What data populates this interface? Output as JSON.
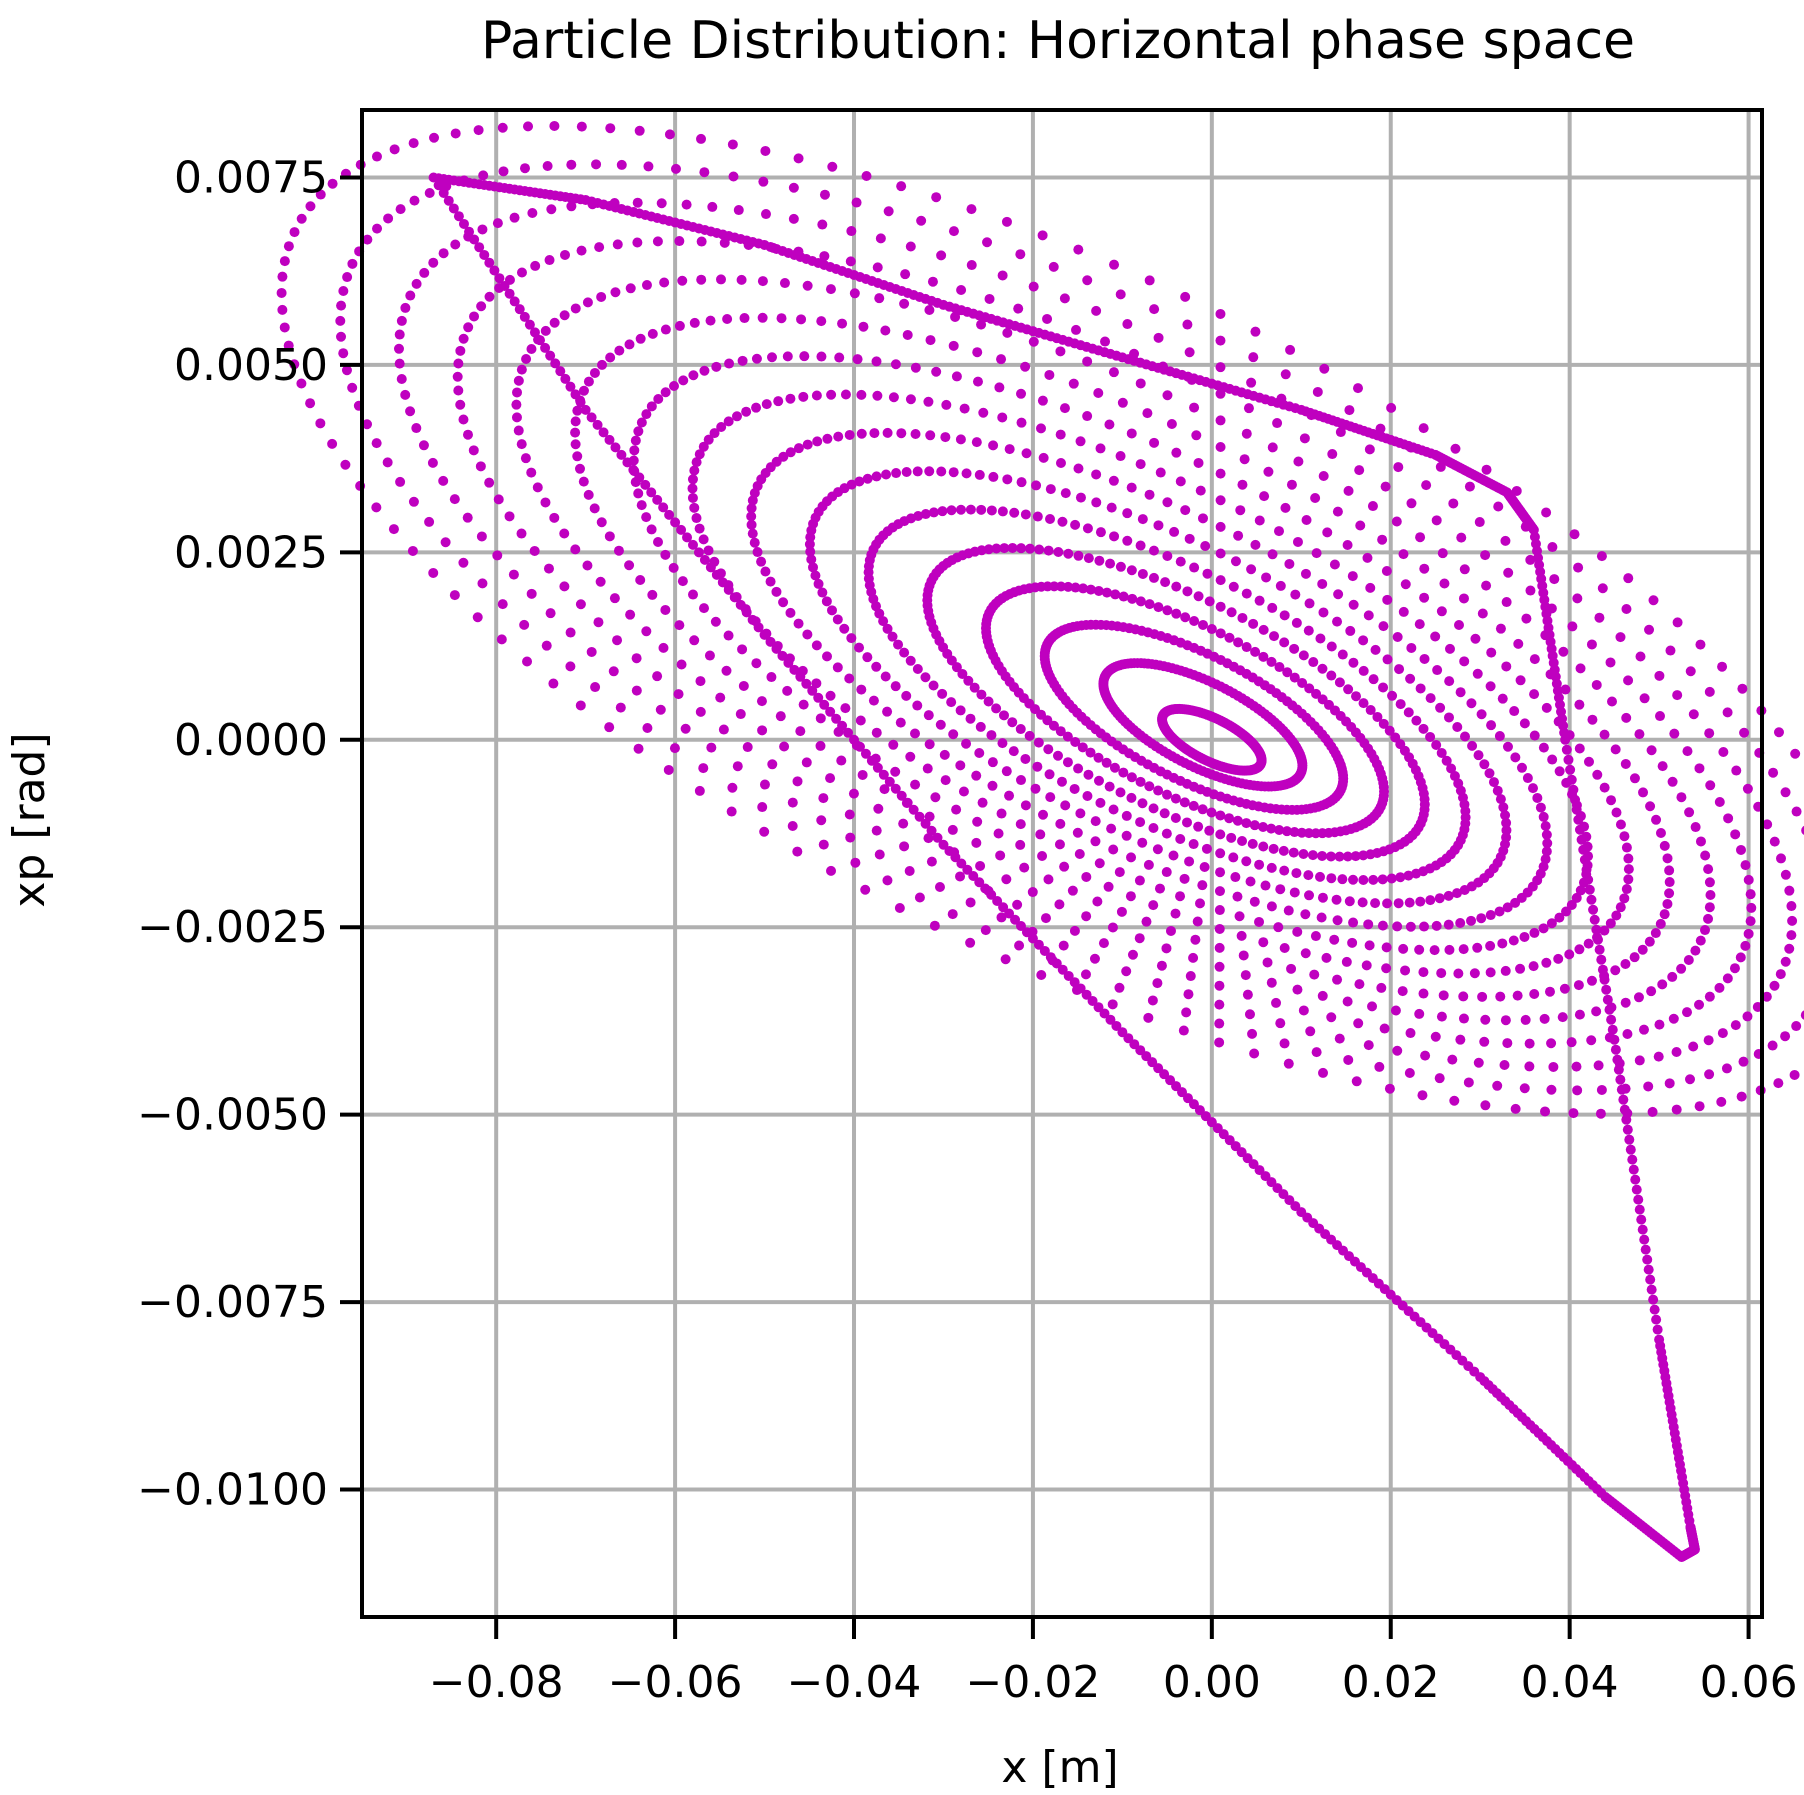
{
  "chart_data": {
    "type": "scatter",
    "title": "Particle Distribution: Horizontal phase space",
    "xlabel": "x [m]",
    "ylabel": "xp [rad]",
    "xlim": [
      -0.095,
      0.0615
    ],
    "ylim": [
      -0.0117,
      0.0084
    ],
    "xticks": [
      -0.08,
      -0.06,
      -0.04,
      -0.02,
      0.0,
      0.02,
      0.04,
      0.06
    ],
    "xtick_labels": [
      "−0.08",
      "−0.06",
      "−0.04",
      "−0.02",
      "0.00",
      "0.02",
      "0.04",
      "0.06"
    ],
    "yticks": [
      0.0075,
      0.005,
      0.0025,
      0.0,
      -0.0025,
      -0.005,
      -0.0075,
      -0.01
    ],
    "ytick_labels": [
      "0.0075",
      "0.0050",
      "0.0025",
      "0.0000",
      "−0.0025",
      "−0.0050",
      "−0.0075",
      "−0.0100"
    ],
    "grid": true,
    "legend": "none",
    "marker_color": "#bf00bf",
    "grid_color": "#b0b0b0",
    "series": [
      {
        "description_only": false,
        "x": [
          -0.087,
          -0.07,
          -0.05,
          -0.03,
          -0.01,
          0.01,
          0.025,
          0.033,
          0.036,
          0.0395,
          0.045,
          0.05,
          0.0535,
          0.054,
          0.0525,
          0.044,
          0.03,
          0.01,
          -0.01,
          -0.03,
          -0.05,
          -0.07,
          -0.087
        ],
        "y": [
          0.0075,
          0.0072,
          0.0066,
          0.0058,
          0.0051,
          0.0044,
          0.0038,
          0.0033,
          0.0028,
          0.0,
          -0.004,
          -0.008,
          -0.0105,
          -0.0108,
          -0.0109,
          -0.0101,
          -0.0085,
          -0.0063,
          -0.0039,
          -0.0014,
          0.0014,
          0.0044,
          0.0075
        ]
      }
    ],
    "rings": [
      {
        "cx": 0.0,
        "cy": 0.0,
        "r": 0.06
      },
      {
        "cx": -0.001,
        "cy": 0.0002,
        "r": 0.12
      },
      {
        "cx": -0.002,
        "cy": 0.0003,
        "r": 0.18
      },
      {
        "cx": -0.003,
        "cy": 0.0004,
        "r": 0.24
      },
      {
        "cx": -0.004,
        "cy": 0.0005,
        "r": 0.3
      },
      {
        "cx": -0.005,
        "cy": 0.0006,
        "r": 0.36
      },
      {
        "cx": -0.006,
        "cy": 0.0007,
        "r": 0.42
      },
      {
        "cx": -0.007,
        "cy": 0.0008,
        "r": 0.48
      },
      {
        "cx": -0.008,
        "cy": 0.0009,
        "r": 0.54
      },
      {
        "cx": -0.009,
        "cy": 0.001,
        "r": 0.6
      },
      {
        "cx": -0.01,
        "cy": 0.0011,
        "r": 0.66
      },
      {
        "cx": -0.011,
        "cy": 0.0012,
        "r": 0.72
      },
      {
        "cx": -0.012,
        "cy": 0.0013,
        "r": 0.78
      },
      {
        "cx": -0.013,
        "cy": 0.0014,
        "r": 0.84
      },
      {
        "cx": -0.014,
        "cy": 0.0015,
        "r": 0.9
      },
      {
        "cx": -0.015,
        "cy": 0.0016,
        "r": 0.96
      }
    ]
  }
}
